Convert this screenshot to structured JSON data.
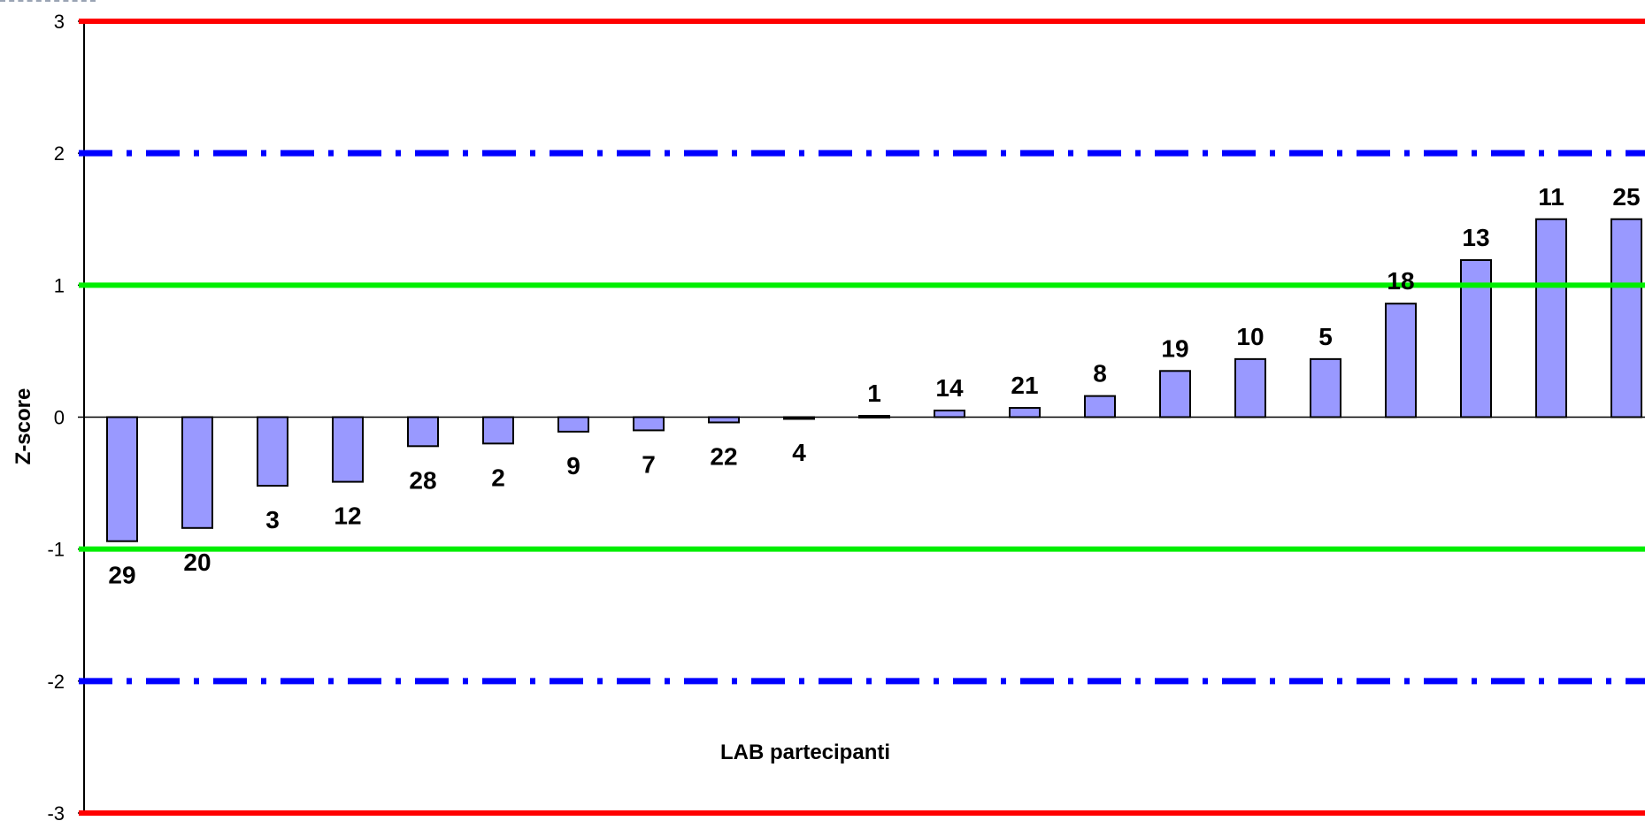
{
  "chart_data": {
    "type": "bar",
    "ylabel": "Z-score",
    "xlabel": "LAB partecipanti",
    "ylim": [
      -3,
      3
    ],
    "yticks": [
      3,
      2,
      1,
      0,
      -1,
      -2,
      -3
    ],
    "grid": false,
    "categories": [
      "29",
      "20",
      "3",
      "12",
      "28",
      "2",
      "9",
      "7",
      "22",
      "4",
      "1",
      "14",
      "21",
      "8",
      "19",
      "10",
      "5",
      "18",
      "13",
      "11",
      "25"
    ],
    "values": [
      -0.94,
      -0.84,
      -0.52,
      -0.49,
      -0.22,
      -0.2,
      -0.11,
      -0.1,
      -0.04,
      -0.01,
      0.01,
      0.05,
      0.07,
      0.16,
      0.35,
      0.44,
      0.44,
      0.86,
      1.19,
      1.5,
      1.5
    ],
    "bar_color": "#9999ff",
    "reference_lines": [
      {
        "y": 3,
        "color": "#ff0000",
        "style": "solid"
      },
      {
        "y": -3,
        "color": "#ff0000",
        "style": "solid"
      },
      {
        "y": 2,
        "color": "#0000ff",
        "style": "dash-dot"
      },
      {
        "y": -2,
        "color": "#0000ff",
        "style": "dash-dot"
      },
      {
        "y": 1,
        "color": "#00ee00",
        "style": "solid"
      },
      {
        "y": -1,
        "color": "#00ee00",
        "style": "solid"
      }
    ]
  }
}
